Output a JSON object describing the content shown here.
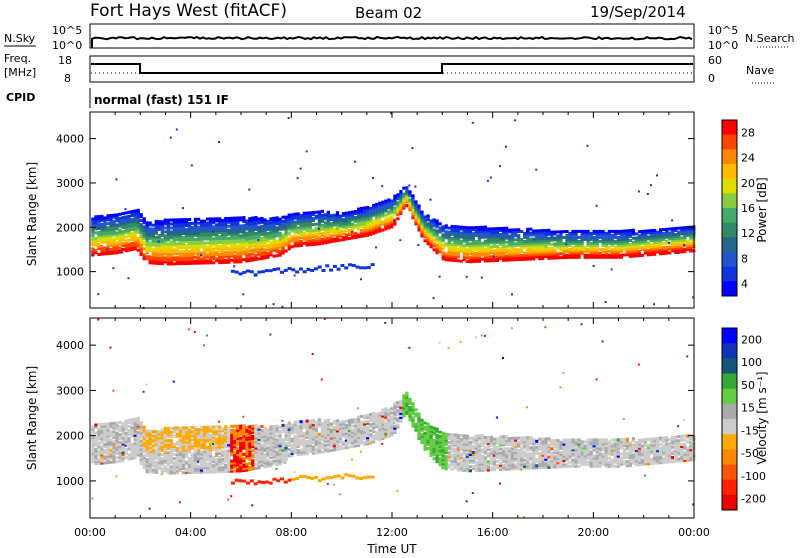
{
  "header": {
    "station": "Fort Hays West (fitACF)",
    "beam": "Beam 02",
    "date": "19/Sep/2014"
  },
  "top_panels": {
    "nsky_label": "N.Sky",
    "nsky_ticks": [
      "10^5",
      "10^0"
    ],
    "nsearch_label": "N.Search",
    "nsearch_ticks": [
      "10^5",
      "10^0"
    ],
    "freq_label_line1": "Freq.",
    "freq_label_line2": "[MHz]",
    "freq_ticks": [
      "18",
      "8"
    ],
    "nave_label": "Nave",
    "nave_ticks": [
      "60",
      "0"
    ],
    "cpid_label": "CPID",
    "cpid_text": "normal (fast) 151 IF"
  },
  "colorbars": {
    "power": {
      "label": "Power [dB]",
      "ticks": [
        "28",
        "24",
        "20",
        "16",
        "12",
        "8",
        "4"
      ],
      "colors": [
        "#ff0000",
        "#ff4400",
        "#ff8800",
        "#ffbb00",
        "#dddd00",
        "#88cc44",
        "#44aa66",
        "#338866",
        "#226688",
        "#2255cc",
        "#1133dd",
        "#0000ff"
      ]
    },
    "velocity": {
      "label": "Velocity [m s⁻¹]",
      "ticks": [
        "200",
        "100",
        "50",
        "15",
        "-15",
        "-50",
        "-100",
        "-200"
      ],
      "colors": [
        "#0000ff",
        "#1133bb",
        "#115577",
        "#33aa33",
        "#66cc44",
        "#aaaaaa",
        "#cccccc",
        "#ffaa00",
        "#ff8800",
        "#ff5500",
        "#ff2200",
        "#ee0000"
      ]
    }
  },
  "chart_data": [
    {
      "type": "heatmap",
      "name": "power",
      "ylabel": "Slant Range [km]",
      "ylim": [
        180,
        4600
      ],
      "yticks": [
        "1000",
        "2000",
        "3000",
        "4000"
      ],
      "xlim": [
        0,
        24
      ],
      "echo_band": {
        "x_hours": [
          0.0,
          1.0,
          1.8,
          2.2,
          3.0,
          5.0,
          6.0,
          7.5,
          8.0,
          9.0,
          10.0,
          11.0,
          12.0,
          12.5,
          13.2,
          14.0,
          15.0,
          17.0,
          19.0,
          21.0,
          23.0,
          24.0
        ],
        "lower_km": [
          1350,
          1400,
          1500,
          1180,
          1150,
          1180,
          1200,
          1350,
          1550,
          1600,
          1700,
          1800,
          2000,
          2500,
          1700,
          1250,
          1200,
          1250,
          1300,
          1300,
          1400,
          1450
        ],
        "upper_km": [
          2200,
          2300,
          2400,
          2100,
          2150,
          2200,
          2200,
          2200,
          2300,
          2350,
          2300,
          2450,
          2650,
          2950,
          2300,
          2050,
          2000,
          1950,
          1900,
          1900,
          1950,
          2000
        ]
      }
    },
    {
      "type": "heatmap",
      "name": "velocity",
      "ylabel": "Slant Range [km]",
      "ylim": [
        180,
        4600
      ],
      "yticks": [
        "1000",
        "2000",
        "3000",
        "4000"
      ],
      "xlim": [
        0,
        24
      ],
      "xticks": [
        "00:00",
        "04:00",
        "08:00",
        "12:00",
        "16:00",
        "20:00",
        "00:00"
      ],
      "xlabel": "Time UT"
    }
  ]
}
